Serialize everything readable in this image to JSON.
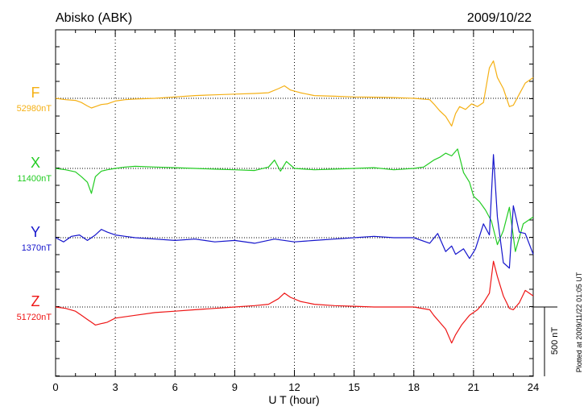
{
  "header": {
    "station": "Abisko (ABK)",
    "date": "2009/10/22"
  },
  "footer": {
    "plotted": "Plotted at 2009/11/22 01:05 UT"
  },
  "scale_bar": {
    "label": "500 nT",
    "value": 500
  },
  "chart_data": {
    "type": "line",
    "title": "Abisko (ABK)",
    "xlabel": "U T (hour)",
    "xlim": [
      0,
      24
    ],
    "xticks": [
      "0",
      "3",
      "6",
      "9",
      "12",
      "15",
      "18",
      "21",
      "24"
    ],
    "y_units": "nT per component, offset from baseline",
    "grid": true,
    "series": [
      {
        "name": "F",
        "baseline_label": "52980nT",
        "color": "#f5b014",
        "x": [
          0,
          0.5,
          1,
          1.3,
          1.6,
          1.8,
          2,
          2.3,
          2.6,
          3,
          3.5,
          4,
          5,
          6,
          7,
          8,
          9,
          10,
          10.7,
          11.2,
          11.5,
          11.8,
          12.3,
          13,
          14,
          15,
          16,
          17,
          18,
          18.8,
          19,
          19.3,
          19.6,
          19.9,
          20.1,
          20.3,
          20.6,
          20.9,
          21.2,
          21.5,
          21.8,
          22,
          22.2,
          22.5,
          22.8,
          23,
          23.3,
          23.6,
          24
        ],
        "y": [
          0,
          -10,
          -15,
          -30,
          -55,
          -70,
          -60,
          -45,
          -40,
          -20,
          -10,
          -5,
          0,
          10,
          20,
          25,
          30,
          35,
          40,
          70,
          90,
          60,
          40,
          20,
          15,
          10,
          8,
          5,
          0,
          -10,
          -40,
          -90,
          -130,
          -200,
          -110,
          -60,
          -80,
          -40,
          -60,
          -30,
          220,
          270,
          150,
          70,
          -60,
          -50,
          30,
          110,
          150
        ]
      },
      {
        "name": "X",
        "baseline_label": "11400nT",
        "color": "#22cc22",
        "x": [
          0,
          0.5,
          1,
          1.3,
          1.6,
          1.8,
          2,
          2.3,
          2.6,
          3,
          3.5,
          4,
          5,
          6,
          7,
          8,
          9,
          10,
          10.7,
          11,
          11.3,
          11.6,
          12,
          13,
          14,
          15,
          16,
          17,
          18,
          18.5,
          19,
          19.3,
          19.6,
          19.9,
          20.2,
          20.5,
          20.8,
          21,
          21.3,
          21.6,
          21.9,
          22.2,
          22.5,
          22.8,
          23.1,
          23.5,
          24
        ],
        "y": [
          0,
          -10,
          -25,
          -60,
          -100,
          -180,
          -60,
          -20,
          -10,
          0,
          10,
          15,
          10,
          5,
          0,
          -5,
          -10,
          -15,
          10,
          60,
          -20,
          50,
          0,
          -10,
          -5,
          0,
          5,
          -10,
          0,
          10,
          60,
          80,
          110,
          90,
          140,
          -30,
          -100,
          -200,
          -240,
          -300,
          -380,
          -550,
          -450,
          -280,
          -600,
          -400,
          -350
        ]
      },
      {
        "name": "Y",
        "baseline_label": "1370nT",
        "color": "#1515cc",
        "x": [
          0,
          0.4,
          0.8,
          1.2,
          1.6,
          2,
          2.3,
          2.6,
          3,
          3.5,
          4,
          5,
          6,
          7,
          8,
          9,
          10,
          11,
          12,
          13,
          14,
          15,
          16,
          17,
          18,
          18.8,
          19.2,
          19.6,
          19.9,
          20.1,
          20.5,
          20.8,
          21.1,
          21.5,
          21.8,
          22,
          22.2,
          22.5,
          22.8,
          23,
          23.3,
          23.6,
          24
        ],
        "y": [
          0,
          -30,
          10,
          20,
          -20,
          20,
          60,
          40,
          20,
          10,
          0,
          -10,
          -20,
          -10,
          -30,
          -20,
          -40,
          -10,
          -30,
          -20,
          -10,
          0,
          10,
          0,
          0,
          -40,
          30,
          -100,
          -60,
          -120,
          -80,
          -150,
          -80,
          100,
          20,
          600,
          150,
          -180,
          -220,
          230,
          40,
          30,
          -120
        ]
      },
      {
        "name": "Z",
        "baseline_label": "51720nT",
        "color": "#ee1515",
        "x": [
          0,
          0.5,
          1,
          1.3,
          1.6,
          1.8,
          2,
          2.3,
          2.6,
          3,
          4,
          5,
          6,
          7,
          8,
          9,
          10,
          10.7,
          11.2,
          11.5,
          11.8,
          12.3,
          13,
          14,
          15,
          16,
          17,
          18,
          18.8,
          19,
          19.3,
          19.6,
          19.9,
          20.1,
          20.4,
          20.8,
          21.2,
          21.5,
          21.8,
          22,
          22.2,
          22.5,
          22.8,
          23,
          23.3,
          23.6,
          24
        ],
        "y": [
          0,
          -10,
          -30,
          -60,
          -90,
          -110,
          -130,
          -120,
          -110,
          -80,
          -60,
          -40,
          -30,
          -20,
          -10,
          0,
          10,
          20,
          60,
          100,
          70,
          40,
          20,
          10,
          5,
          0,
          0,
          0,
          -20,
          -60,
          -110,
          -160,
          -260,
          -200,
          -130,
          -60,
          -20,
          30,
          100,
          330,
          220,
          80,
          -10,
          -20,
          30,
          120,
          80
        ]
      }
    ]
  }
}
